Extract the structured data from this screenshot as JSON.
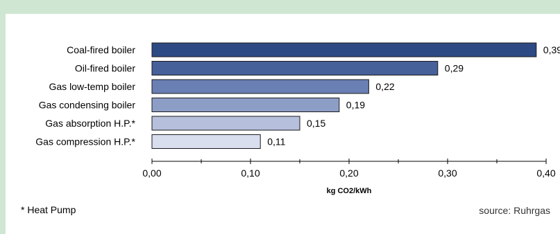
{
  "chart_data": {
    "type": "bar",
    "orientation": "horizontal",
    "categories": [
      "Coal-fired boiler",
      "Oil-fired boiler",
      "Gas low-temp boiler",
      "Gas condensing boiler",
      "Gas absorption H.P.*",
      "Gas compression H.P.*"
    ],
    "values": [
      0.39,
      0.29,
      0.22,
      0.19,
      0.15,
      0.11
    ],
    "value_labels": [
      "0,39",
      "0,29",
      "0,22",
      "0,19",
      "0,15",
      "0,11"
    ],
    "bar_colors": [
      "#2e4a84",
      "#46609a",
      "#6a7fb3",
      "#8d9ec6",
      "#b6c0dd",
      "#d8deee"
    ],
    "xlabel": "kg CO2/kWh",
    "xlim": [
      0,
      0.4
    ],
    "xticks": [
      0,
      0.1,
      0.2,
      0.3,
      0.4
    ],
    "xtick_labels": [
      "0,00",
      "0,10",
      "0,20",
      "0,30",
      "0,40"
    ],
    "grid": false
  },
  "footnote": "* Heat Pump",
  "source": "source: Ruhrgas"
}
